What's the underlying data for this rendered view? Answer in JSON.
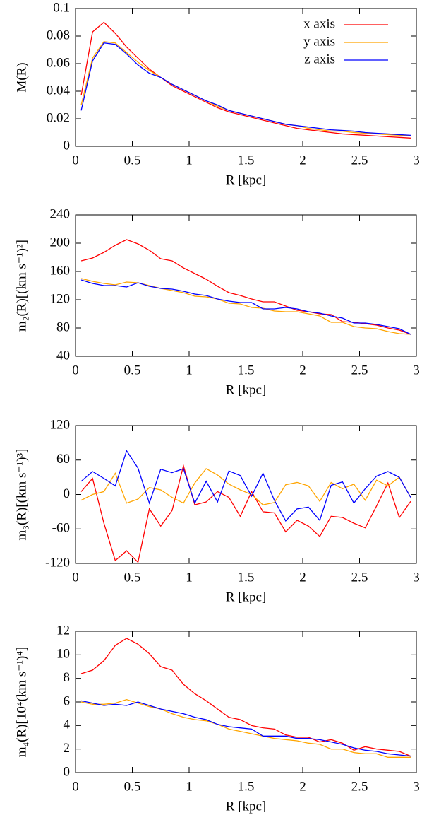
{
  "chart_data": [
    {
      "type": "line",
      "x_label": "R [kpc]",
      "y_label": "M(R)",
      "legend": "upper right",
      "grid": false,
      "x": [
        0.05,
        0.15,
        0.25,
        0.35,
        0.45,
        0.55,
        0.65,
        0.75,
        0.85,
        0.95,
        1.05,
        1.15,
        1.25,
        1.35,
        1.45,
        1.55,
        1.65,
        1.75,
        1.85,
        1.95,
        2.05,
        2.15,
        2.25,
        2.35,
        2.45,
        2.55,
        2.65,
        2.75,
        2.85,
        2.95
      ],
      "xlim": [
        0,
        3
      ],
      "xticks": [
        0,
        0.5,
        1,
        1.5,
        2,
        2.5,
        3
      ],
      "ylim": [
        0,
        0.1
      ],
      "yticks": [
        0,
        0.02,
        0.04,
        0.06,
        0.08,
        0.1
      ],
      "series": [
        {
          "name": "x axis",
          "color": "#ff0000",
          "values": [
            0.037,
            0.083,
            0.09,
            0.082,
            0.072,
            0.064,
            0.056,
            0.05,
            0.044,
            0.04,
            0.036,
            0.032,
            0.028,
            0.025,
            0.023,
            0.021,
            0.019,
            0.017,
            0.015,
            0.013,
            0.012,
            0.011,
            0.01,
            0.009,
            0.0085,
            0.008,
            0.0075,
            0.007,
            0.0065,
            0.006
          ]
        },
        {
          "name": "y axis",
          "color": "#ffa500",
          "values": [
            0.03,
            0.064,
            0.076,
            0.075,
            0.068,
            0.061,
            0.055,
            0.05,
            0.045,
            0.041,
            0.037,
            0.033,
            0.029,
            0.026,
            0.024,
            0.022,
            0.02,
            0.018,
            0.016,
            0.015,
            0.013,
            0.012,
            0.011,
            0.011,
            0.01,
            0.0095,
            0.009,
            0.0085,
            0.008,
            0.0075
          ]
        },
        {
          "name": "z axis",
          "color": "#0000ff",
          "values": [
            0.026,
            0.062,
            0.075,
            0.074,
            0.067,
            0.059,
            0.053,
            0.05,
            0.045,
            0.041,
            0.037,
            0.033,
            0.03,
            0.026,
            0.024,
            0.022,
            0.02,
            0.018,
            0.016,
            0.015,
            0.014,
            0.013,
            0.012,
            0.0115,
            0.011,
            0.01,
            0.0095,
            0.009,
            0.0085,
            0.008
          ]
        }
      ]
    },
    {
      "type": "line",
      "x_label": "R [kpc]",
      "y_label": "m₂(R)[(km s⁻¹)²]",
      "grid": false,
      "x": [
        0.05,
        0.15,
        0.25,
        0.35,
        0.45,
        0.55,
        0.65,
        0.75,
        0.85,
        0.95,
        1.05,
        1.15,
        1.25,
        1.35,
        1.45,
        1.55,
        1.65,
        1.75,
        1.85,
        1.95,
        2.05,
        2.15,
        2.25,
        2.35,
        2.45,
        2.55,
        2.65,
        2.75,
        2.85,
        2.95
      ],
      "xlim": [
        0,
        3
      ],
      "xticks": [
        0,
        0.5,
        1,
        1.5,
        2,
        2.5,
        3
      ],
      "ylim": [
        40,
        240
      ],
      "yticks": [
        40,
        80,
        120,
        160,
        200,
        240
      ],
      "series": [
        {
          "color": "#ff0000",
          "values": [
            175,
            179,
            187,
            197,
            205,
            199,
            190,
            178,
            175,
            165,
            157,
            149,
            139,
            130,
            126,
            121,
            117,
            117,
            111,
            105,
            103,
            100,
            99,
            89,
            88,
            86,
            84,
            80,
            77,
            71
          ]
        },
        {
          "color": "#ffa500",
          "values": [
            150,
            146,
            143,
            141,
            145,
            144,
            140,
            136,
            133,
            130,
            125,
            124,
            121,
            115,
            114,
            109,
            108,
            104,
            103,
            103,
            100,
            97,
            88,
            88,
            82,
            80,
            79,
            75,
            72,
            71
          ]
        },
        {
          "color": "#0000ff",
          "values": [
            148,
            143,
            140,
            140,
            138,
            144,
            139,
            136,
            135,
            132,
            128,
            126,
            121,
            118,
            116,
            116,
            107,
            107,
            109,
            107,
            103,
            101,
            97,
            94,
            87,
            87,
            85,
            82,
            79,
            71
          ]
        }
      ]
    },
    {
      "type": "line",
      "x_label": "R [kpc]",
      "y_label": "m₃(R)[(km s⁻¹)³]",
      "grid": false,
      "x": [
        0.05,
        0.15,
        0.25,
        0.35,
        0.45,
        0.55,
        0.65,
        0.75,
        0.85,
        0.95,
        1.05,
        1.15,
        1.25,
        1.35,
        1.45,
        1.55,
        1.65,
        1.75,
        1.85,
        1.95,
        2.05,
        2.15,
        2.25,
        2.35,
        2.45,
        2.55,
        2.65,
        2.75,
        2.85,
        2.95
      ],
      "xlim": [
        0,
        3
      ],
      "xticks": [
        0,
        0.5,
        1,
        1.5,
        2,
        2.5,
        3
      ],
      "ylim": [
        -120,
        120
      ],
      "yticks": [
        -120,
        -60,
        0,
        60,
        120
      ],
      "series": [
        {
          "color": "#ff0000",
          "values": [
            5,
            28,
            -50,
            -115,
            -98,
            -118,
            -25,
            -55,
            -28,
            50,
            -18,
            -13,
            5,
            -5,
            -38,
            5,
            -30,
            -32,
            -65,
            -45,
            -55,
            -73,
            -38,
            -40,
            -50,
            -58,
            -20,
            20,
            -40,
            -12
          ]
        },
        {
          "color": "#ffa500",
          "values": [
            -10,
            0,
            5,
            37,
            -15,
            -8,
            12,
            8,
            -5,
            -15,
            20,
            45,
            34,
            18,
            8,
            0,
            -18,
            -14,
            17,
            21,
            15,
            -12,
            21,
            10,
            18,
            -10,
            25,
            15,
            30,
            -5
          ]
        },
        {
          "color": "#0000ff",
          "values": [
            23,
            40,
            28,
            15,
            76,
            46,
            -15,
            44,
            38,
            45,
            -15,
            23,
            -13,
            41,
            33,
            -3,
            37,
            -10,
            -46,
            -25,
            -22,
            -45,
            16,
            22,
            -15,
            10,
            32,
            40,
            30,
            -5
          ]
        }
      ]
    },
    {
      "type": "line",
      "x_label": "R [kpc]",
      "y_label": "m₄(R)[10⁴(km s⁻¹)⁴]",
      "grid": false,
      "x": [
        0.05,
        0.15,
        0.25,
        0.35,
        0.45,
        0.55,
        0.65,
        0.75,
        0.85,
        0.95,
        1.05,
        1.15,
        1.25,
        1.35,
        1.45,
        1.55,
        1.65,
        1.75,
        1.85,
        1.95,
        2.05,
        2.15,
        2.25,
        2.35,
        2.45,
        2.55,
        2.65,
        2.75,
        2.85,
        2.95
      ],
      "xlim": [
        0,
        3
      ],
      "xticks": [
        0,
        0.5,
        1,
        1.5,
        2,
        2.5,
        3
      ],
      "ylim": [
        0,
        12
      ],
      "yticks": [
        0,
        2,
        4,
        6,
        8,
        10,
        12
      ],
      "series": [
        {
          "color": "#ff0000",
          "values": [
            8.4,
            8.7,
            9.5,
            10.8,
            11.4,
            10.9,
            10.1,
            9.0,
            8.7,
            7.5,
            6.7,
            6.1,
            5.4,
            4.7,
            4.5,
            4.0,
            3.8,
            3.7,
            3.2,
            3.0,
            3.0,
            2.6,
            2.8,
            2.5,
            1.9,
            2.2,
            2.0,
            1.9,
            1.8,
            1.4
          ]
        },
        {
          "color": "#ffa500",
          "values": [
            6.0,
            5.8,
            5.8,
            5.9,
            6.2,
            5.9,
            5.6,
            5.4,
            5.0,
            4.7,
            4.5,
            4.4,
            4.1,
            3.7,
            3.5,
            3.3,
            3.1,
            2.9,
            2.8,
            2.7,
            2.5,
            2.4,
            2.0,
            2.0,
            1.7,
            1.6,
            1.6,
            1.3,
            1.3,
            1.3
          ]
        },
        {
          "color": "#0000ff",
          "values": [
            6.1,
            5.9,
            5.7,
            5.8,
            5.7,
            6.0,
            5.7,
            5.4,
            5.2,
            5.0,
            4.7,
            4.5,
            4.1,
            3.9,
            3.8,
            3.7,
            3.1,
            3.1,
            3.1,
            2.9,
            2.9,
            2.8,
            2.6,
            2.4,
            2.1,
            1.9,
            1.8,
            1.6,
            1.5,
            1.4
          ]
        }
      ]
    }
  ]
}
